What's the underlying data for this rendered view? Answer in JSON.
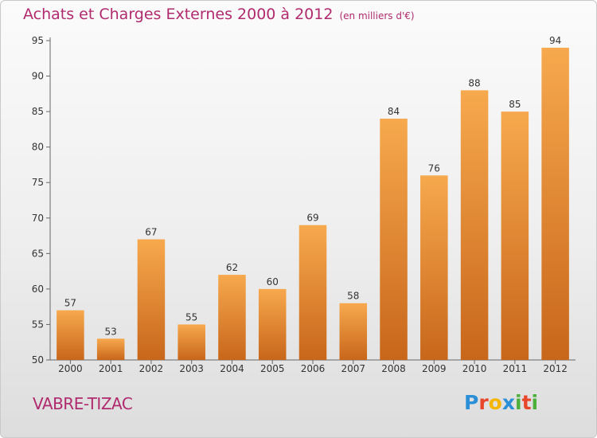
{
  "chart_data": {
    "type": "bar",
    "title": "Achats et Charges Externes 2000 à 2012",
    "unit_note": "(en milliers d'€)",
    "categories": [
      "2000",
      "2001",
      "2002",
      "2003",
      "2004",
      "2005",
      "2006",
      "2007",
      "2008",
      "2009",
      "2010",
      "2011",
      "2012"
    ],
    "values": [
      57,
      53,
      67,
      55,
      62,
      60,
      69,
      58,
      84,
      76,
      88,
      85,
      94
    ],
    "ylim": [
      50,
      95
    ],
    "yticks": [
      50,
      55,
      60,
      65,
      70,
      75,
      80,
      85,
      90,
      95
    ],
    "xlabel": "",
    "ylabel": "",
    "grid": false,
    "data_labels": true,
    "bar_color": "#f0902a"
  },
  "commune": "VABRE-TIZAC",
  "logo": {
    "text": "Proxiti",
    "letters": [
      "P",
      "r",
      "o",
      "x",
      "i",
      "t",
      "i"
    ],
    "letter_colors": [
      "#2b8fd8",
      "#e8462a",
      "#f5b500",
      "#2b8fd8",
      "#4caf3c",
      "#e8462a",
      "#4caf3c"
    ]
  },
  "colors": {
    "title": "#b02a6e",
    "axis": "#666666",
    "bar_dark": "#c8661a",
    "bar_light": "#f7a94e"
  }
}
